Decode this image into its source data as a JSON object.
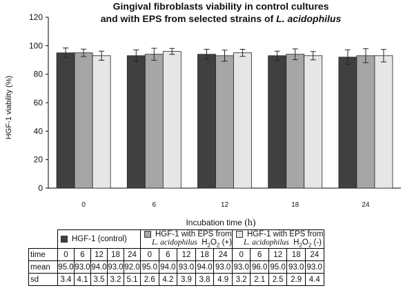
{
  "title": {
    "line1": "Gingival fibroblasts viability in control cultures",
    "line2_prefix": "and with EPS from selected strains of ",
    "line2_italic": "L. acidophilus"
  },
  "chart_data": {
    "type": "bar",
    "title": "Gingival fibroblasts viability in control cultures and with EPS from selected strains of L. acidophilus",
    "ylabel": "HGF-1 viability (%)",
    "xlabel": "Incubation time",
    "xlabel_unit": "(h)",
    "ylim": [
      0,
      120
    ],
    "yticks": [
      0,
      20,
      40,
      60,
      80,
      100,
      120
    ],
    "categories": [
      "0",
      "6",
      "12",
      "18",
      "24"
    ],
    "error_bars": true,
    "series": [
      {
        "name": "HGF-1 (control)",
        "color": "#404040",
        "values": [
          95.0,
          93.0,
          94.0,
          93.0,
          92.0
        ],
        "sd": [
          3.4,
          4.1,
          3.5,
          3.2,
          5.1
        ]
      },
      {
        "name": "HGF-1 with EPS from L. acidophilus H2O2 (+)",
        "color": "#a6a6a6",
        "values": [
          95.0,
          94.0,
          93.0,
          94.0,
          93.0
        ],
        "sd": [
          2.6,
          4.2,
          3.9,
          3.8,
          4.9
        ]
      },
      {
        "name": "HGF-1 with EPS from L. acidophilus H2O2 (-)",
        "color": "#e6e6e6",
        "values": [
          93.0,
          96.0,
          95.0,
          93.0,
          93.0
        ],
        "sd": [
          3.2,
          2.1,
          2.5,
          2.9,
          4.4
        ]
      }
    ]
  },
  "table": {
    "legend": [
      {
        "line1": "HGF-1 (control)",
        "line2a": "",
        "line2b": ""
      },
      {
        "line1": "HGF-1 with EPS from",
        "line2a": "L. acidophilus",
        "line2b": "H2O2 (+)"
      },
      {
        "line1": "HGF-1 with EPS from",
        "line2a": "L. acidophilus",
        "line2b": "H2O2 (-)"
      }
    ],
    "rows": [
      {
        "label": "time",
        "cells": [
          "0",
          "6",
          "12",
          "18",
          "24",
          "0",
          "6",
          "12",
          "18",
          "24",
          "0",
          "6",
          "12",
          "18",
          "24"
        ]
      },
      {
        "label": "mean",
        "cells": [
          "95.0",
          "93.0",
          "94.0",
          "93.0",
          "92.0",
          "95.0",
          "94.0",
          "93.0",
          "94.0",
          "93.0",
          "93.0",
          "96.0",
          "95.0",
          "93.0",
          "93.0"
        ]
      },
      {
        "label": "sd",
        "cells": [
          "3.4",
          "4.1",
          "3.5",
          "3.2",
          "5.1",
          "2.6",
          "4.2",
          "3.9",
          "3.8",
          "4.9",
          "3.2",
          "2.1",
          "2.5",
          "2.9",
          "4.4"
        ]
      }
    ]
  }
}
